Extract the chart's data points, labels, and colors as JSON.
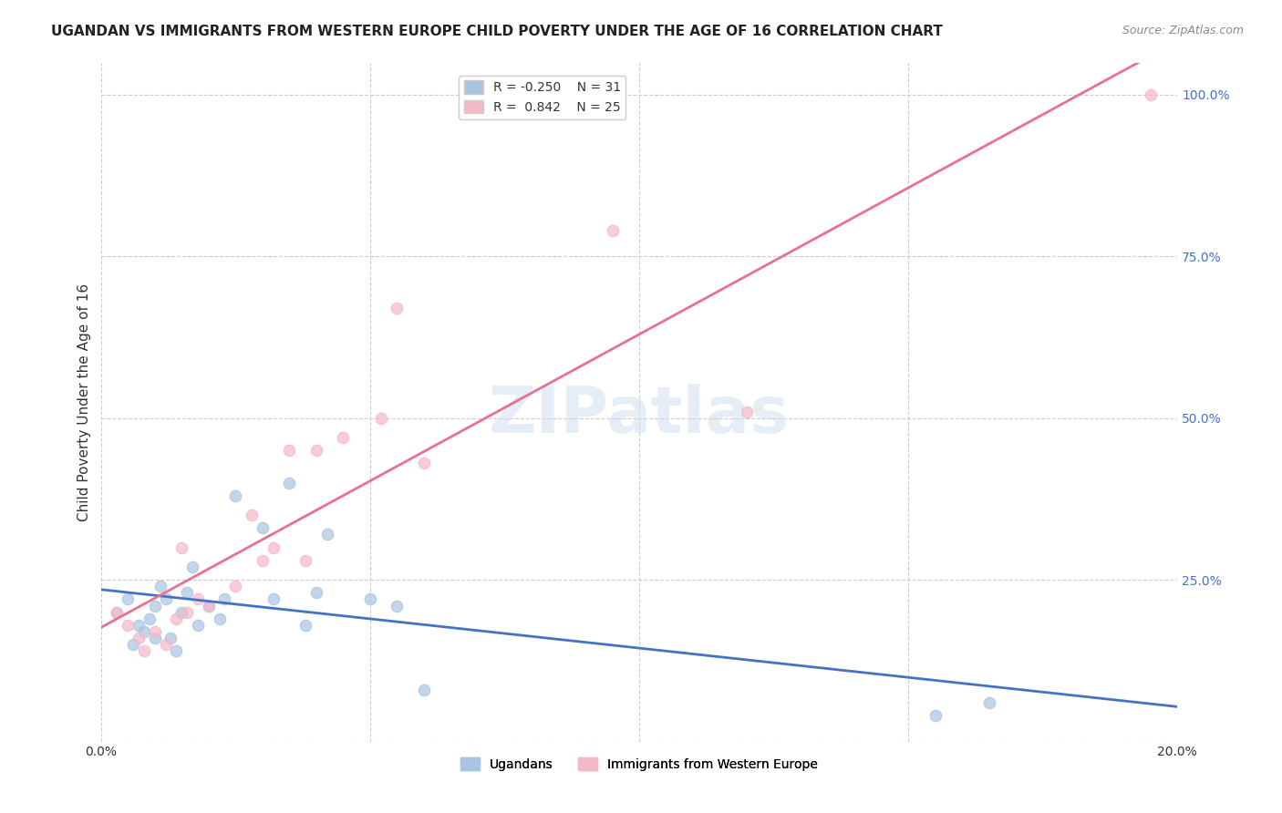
{
  "title": "UGANDAN VS IMMIGRANTS FROM WESTERN EUROPE CHILD POVERTY UNDER THE AGE OF 16 CORRELATION CHART",
  "source": "Source: ZipAtlas.com",
  "ylabel": "Child Poverty Under the Age of 16",
  "xlim": [
    0.0,
    0.2
  ],
  "ylim": [
    0.0,
    1.05
  ],
  "yticks": [
    0.0,
    0.25,
    0.5,
    0.75,
    1.0
  ],
  "ytick_labels": [
    "",
    "25.0%",
    "50.0%",
    "75.0%",
    "100.0%"
  ],
  "xticks": [
    0.0,
    0.05,
    0.1,
    0.15,
    0.2
  ],
  "xtick_labels": [
    "0.0%",
    "",
    "",
    "",
    "20.0%"
  ],
  "legend_label1": "Ugandans",
  "legend_label2": "Immigrants from Western Europe",
  "ugandan_x": [
    0.003,
    0.005,
    0.006,
    0.007,
    0.008,
    0.009,
    0.01,
    0.01,
    0.011,
    0.012,
    0.013,
    0.014,
    0.015,
    0.016,
    0.017,
    0.018,
    0.02,
    0.022,
    0.023,
    0.025,
    0.03,
    0.032,
    0.035,
    0.038,
    0.04,
    0.042,
    0.05,
    0.055,
    0.06,
    0.155,
    0.165
  ],
  "ugandan_y": [
    0.2,
    0.22,
    0.15,
    0.18,
    0.17,
    0.19,
    0.21,
    0.16,
    0.24,
    0.22,
    0.16,
    0.14,
    0.2,
    0.23,
    0.27,
    0.18,
    0.21,
    0.19,
    0.22,
    0.38,
    0.33,
    0.22,
    0.4,
    0.18,
    0.23,
    0.32,
    0.22,
    0.21,
    0.08,
    0.04,
    0.06
  ],
  "immigrant_x": [
    0.003,
    0.005,
    0.007,
    0.008,
    0.01,
    0.012,
    0.014,
    0.015,
    0.016,
    0.018,
    0.02,
    0.025,
    0.028,
    0.03,
    0.032,
    0.035,
    0.038,
    0.04,
    0.045,
    0.052,
    0.055,
    0.06,
    0.095,
    0.12,
    0.195
  ],
  "immigrant_y": [
    0.2,
    0.18,
    0.16,
    0.14,
    0.17,
    0.15,
    0.19,
    0.3,
    0.2,
    0.22,
    0.21,
    0.24,
    0.35,
    0.28,
    0.3,
    0.45,
    0.28,
    0.45,
    0.47,
    0.5,
    0.67,
    0.43,
    0.79,
    0.51,
    1.0
  ],
  "ugandan_color": "#a8c4e0",
  "ugandan_line_color": "#4472c4",
  "immigrant_color": "#f4b8c8",
  "immigrant_line_color": "#e87090",
  "background_color": "#ffffff",
  "watermark": "ZIPatlas",
  "title_fontsize": 11,
  "axis_label_fontsize": 11,
  "tick_fontsize": 10,
  "legend_fontsize": 10,
  "dot_size": 80,
  "dot_alpha": 0.7,
  "right_axis_color": "#4472c4"
}
